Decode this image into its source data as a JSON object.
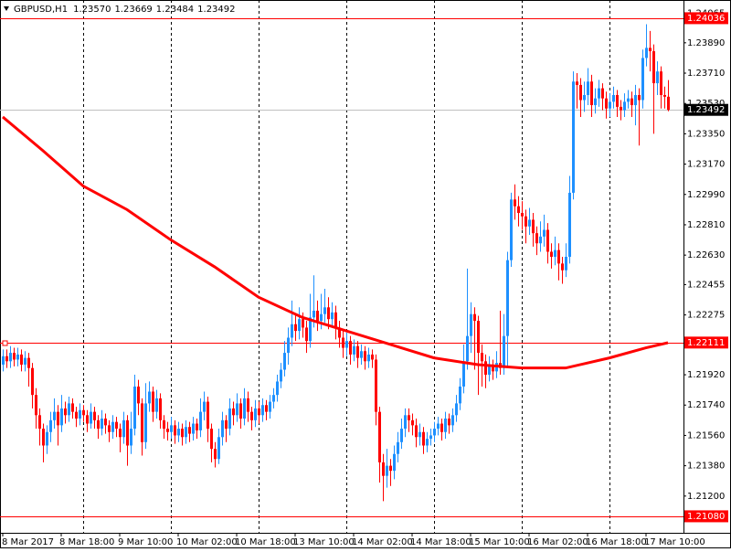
{
  "chart_data": {
    "type": "candlestick",
    "symbol": "GBPUSD,H1",
    "header_values": [
      "1.23570",
      "1.23669",
      "1.23484",
      "1.23492"
    ],
    "up_color": "#1e90ff",
    "down_color": "#ff0000",
    "ylim": [
      1.20982,
      1.24144
    ],
    "yticks": [
      1.24065,
      {
        "value": 1.2389,
        "label": "1.23890"
      },
      {
        "value": 1.2371,
        "label": "1.23710"
      },
      {
        "value": 1.2353,
        "label": "1.23530"
      },
      {
        "value": 1.2335,
        "label": "1.23350"
      },
      {
        "value": 1.2317,
        "label": "1.23170"
      },
      {
        "value": 1.2299,
        "label": "1.22990"
      },
      {
        "value": 1.2281,
        "label": "1.22810"
      },
      {
        "value": 1.2263,
        "label": "1.22630"
      },
      1.22455,
      1.22275,
      {
        "value": 1.2192,
        "label": "1.21920"
      },
      {
        "value": 1.2174,
        "label": "1.21740"
      },
      {
        "value": 1.2156,
        "label": "1.21560"
      },
      {
        "value": 1.2138,
        "label": "1.21380"
      },
      {
        "value": 1.212,
        "label": "1.21200"
      }
    ],
    "xticks": [
      {
        "value": 0,
        "label": "8 Mar 2017"
      },
      {
        "value": 16,
        "label": "8 Mar 18:00"
      },
      {
        "value": 32,
        "label": "9 Mar 10:00"
      },
      {
        "value": 48,
        "label": "10 Mar 02:00"
      },
      {
        "value": 64,
        "label": "10 Mar 18:00"
      },
      {
        "value": 80,
        "label": "13 Mar 10:00"
      },
      {
        "value": 96,
        "label": "14 Mar 02:00"
      },
      {
        "value": 112,
        "label": "14 Mar 18:00"
      },
      {
        "value": 128,
        "label": "15 Mar 10:00"
      },
      {
        "value": 144,
        "label": "16 Mar 02:00"
      },
      {
        "value": 160,
        "label": "16 Mar 18:00"
      },
      {
        "value": 176,
        "label": "17 Mar 10:00"
      }
    ],
    "day_separators": [
      22,
      46,
      70,
      94,
      118,
      142,
      166
    ],
    "levels": [
      {
        "value": 1.24036,
        "color": "#ff0000"
      },
      {
        "value": 1.22111,
        "color": "#ff0000"
      },
      {
        "value": 1.2108,
        "label": "1.21080",
        "color": "#ff0000"
      }
    ],
    "current_price": {
      "value": 1.23492,
      "color": "#c0c0c0"
    },
    "ma": {
      "color": "#ff0000",
      "x": [
        0,
        11,
        22,
        34,
        46,
        58,
        70,
        82,
        94,
        106,
        118,
        130,
        142,
        154,
        166,
        176,
        182
      ],
      "values": [
        1.2345,
        1.2325,
        1.2304,
        1.229,
        1.2272,
        1.2256,
        1.2238,
        1.2226,
        1.2218,
        1.221,
        1.2202,
        1.2198,
        1.2196,
        1.2196,
        1.2202,
        1.2208,
        1.2211
      ]
    },
    "ohlc": [
      [
        1.2198,
        1.2207,
        1.2194,
        1.2203
      ],
      [
        1.2203,
        1.2207,
        1.2196,
        1.22
      ],
      [
        1.22,
        1.2209,
        1.2196,
        1.2205
      ],
      [
        1.2205,
        1.2208,
        1.2197,
        1.2201
      ],
      [
        1.2201,
        1.2208,
        1.2197,
        1.2204
      ],
      [
        1.2204,
        1.2207,
        1.2194,
        1.2198
      ],
      [
        1.2198,
        1.2206,
        1.2194,
        1.2202
      ],
      [
        1.2202,
        1.2205,
        1.2185,
        1.2196
      ],
      [
        1.2196,
        1.2199,
        1.2172,
        1.218
      ],
      [
        1.218,
        1.2184,
        1.216,
        1.2168
      ],
      [
        1.2168,
        1.2172,
        1.215,
        1.216
      ],
      [
        1.216,
        1.2163,
        1.214,
        1.215
      ],
      [
        1.215,
        1.2162,
        1.2145,
        1.2158
      ],
      [
        1.2158,
        1.217,
        1.2152,
        1.2165
      ],
      [
        1.2165,
        1.2178,
        1.216,
        1.217
      ],
      [
        1.217,
        1.2174,
        1.215,
        1.2162
      ],
      [
        1.2162,
        1.218,
        1.2158,
        1.2172
      ],
      [
        1.2172,
        1.2176,
        1.2163,
        1.2168
      ],
      [
        1.2168,
        1.2179,
        1.2164,
        1.2175
      ],
      [
        1.2175,
        1.2178,
        1.2166,
        1.217
      ],
      [
        1.217,
        1.2173,
        1.2161,
        1.2166
      ],
      [
        1.2166,
        1.2175,
        1.2162,
        1.2171
      ],
      [
        1.2171,
        1.2174,
        1.2164,
        1.2168
      ],
      [
        1.2168,
        1.2171,
        1.2158,
        1.2163
      ],
      [
        1.2163,
        1.2175,
        1.216,
        1.217
      ],
      [
        1.217,
        1.2173,
        1.216,
        1.2165
      ],
      [
        1.2165,
        1.2168,
        1.2154,
        1.216
      ],
      [
        1.216,
        1.2171,
        1.2156,
        1.2166
      ],
      [
        1.2166,
        1.2169,
        1.2157,
        1.2162
      ],
      [
        1.2162,
        1.2165,
        1.2152,
        1.2158
      ],
      [
        1.2158,
        1.2168,
        1.2154,
        1.2164
      ],
      [
        1.2164,
        1.2167,
        1.2155,
        1.216
      ],
      [
        1.216,
        1.2163,
        1.2146,
        1.2155
      ],
      [
        1.2155,
        1.217,
        1.2151,
        1.2165
      ],
      [
        1.2165,
        1.2168,
        1.2138,
        1.215
      ],
      [
        1.215,
        1.217,
        1.2145,
        1.216
      ],
      [
        1.216,
        1.2192,
        1.2156,
        1.2185
      ],
      [
        1.2185,
        1.2189,
        1.2168,
        1.2175
      ],
      [
        1.2175,
        1.2178,
        1.2144,
        1.2152
      ],
      [
        1.2152,
        1.2187,
        1.2148,
        1.2175
      ],
      [
        1.2175,
        1.2188,
        1.217,
        1.2182
      ],
      [
        1.2182,
        1.2185,
        1.2164,
        1.217
      ],
      [
        1.217,
        1.2183,
        1.2166,
        1.2178
      ],
      [
        1.2178,
        1.2181,
        1.216,
        1.2165
      ],
      [
        1.2165,
        1.2168,
        1.2154,
        1.216
      ],
      [
        1.216,
        1.2164,
        1.2153,
        1.2158
      ],
      [
        1.2158,
        1.2167,
        1.2154,
        1.2162
      ],
      [
        1.2162,
        1.2165,
        1.2151,
        1.2156
      ],
      [
        1.2156,
        1.2164,
        1.2152,
        1.216
      ],
      [
        1.216,
        1.2163,
        1.215,
        1.2155
      ],
      [
        1.2155,
        1.2165,
        1.2151,
        1.2161
      ],
      [
        1.2161,
        1.2164,
        1.2152,
        1.2157
      ],
      [
        1.2157,
        1.2167,
        1.2153,
        1.2163
      ],
      [
        1.2163,
        1.2166,
        1.2154,
        1.2159
      ],
      [
        1.2159,
        1.2178,
        1.2155,
        1.217
      ],
      [
        1.217,
        1.2182,
        1.2165,
        1.2176
      ],
      [
        1.2176,
        1.2179,
        1.2152,
        1.216
      ],
      [
        1.216,
        1.2163,
        1.214,
        1.2148
      ],
      [
        1.2148,
        1.2152,
        1.2137,
        1.2142
      ],
      [
        1.2142,
        1.216,
        1.2139,
        1.2155
      ],
      [
        1.2155,
        1.217,
        1.215,
        1.2165
      ],
      [
        1.2165,
        1.2168,
        1.2152,
        1.216
      ],
      [
        1.216,
        1.2178,
        1.2156,
        1.2172
      ],
      [
        1.2172,
        1.2176,
        1.2162,
        1.2168
      ],
      [
        1.2168,
        1.2181,
        1.2164,
        1.2175
      ],
      [
        1.2175,
        1.2178,
        1.216,
        1.2166
      ],
      [
        1.2166,
        1.2184,
        1.2162,
        1.2178
      ],
      [
        1.2178,
        1.2182,
        1.2164,
        1.217
      ],
      [
        1.217,
        1.2173,
        1.2159,
        1.2165
      ],
      [
        1.2165,
        1.2177,
        1.2161,
        1.2172
      ],
      [
        1.2172,
        1.2176,
        1.2163,
        1.2168
      ],
      [
        1.2168,
        1.2178,
        1.2164,
        1.2174
      ],
      [
        1.2174,
        1.2177,
        1.2165,
        1.217
      ],
      [
        1.217,
        1.218,
        1.2166,
        1.2176
      ],
      [
        1.2176,
        1.2184,
        1.2172,
        1.218
      ],
      [
        1.218,
        1.2192,
        1.2176,
        1.2188
      ],
      [
        1.2188,
        1.2199,
        1.2184,
        1.2195
      ],
      [
        1.2195,
        1.2212,
        1.2191,
        1.2205
      ],
      [
        1.2205,
        1.222,
        1.2198,
        1.2214
      ],
      [
        1.2214,
        1.2236,
        1.2209,
        1.2222
      ],
      [
        1.2222,
        1.2228,
        1.2212,
        1.2218
      ],
      [
        1.2218,
        1.2232,
        1.2213,
        1.2225
      ],
      [
        1.2225,
        1.2229,
        1.2214,
        1.222
      ],
      [
        1.222,
        1.2224,
        1.2205,
        1.2212
      ],
      [
        1.2212,
        1.224,
        1.2208,
        1.2226
      ],
      [
        1.2226,
        1.2251,
        1.222,
        1.223
      ],
      [
        1.223,
        1.2236,
        1.2218,
        1.2224
      ],
      [
        1.2224,
        1.224,
        1.2219,
        1.2228
      ],
      [
        1.2228,
        1.2243,
        1.2223,
        1.2232
      ],
      [
        1.2232,
        1.2238,
        1.2219,
        1.2225
      ],
      [
        1.2225,
        1.2235,
        1.222,
        1.2229
      ],
      [
        1.2229,
        1.2233,
        1.2213,
        1.222
      ],
      [
        1.222,
        1.2224,
        1.2208,
        1.2214
      ],
      [
        1.2214,
        1.2218,
        1.2202,
        1.2208
      ],
      [
        1.2208,
        1.2217,
        1.2203,
        1.2212
      ],
      [
        1.2212,
        1.2215,
        1.2198,
        1.2204
      ],
      [
        1.2204,
        1.2213,
        1.22,
        1.2209
      ],
      [
        1.2209,
        1.2212,
        1.2196,
        1.2202
      ],
      [
        1.2202,
        1.221,
        1.2198,
        1.2206
      ],
      [
        1.2206,
        1.2209,
        1.2195,
        1.22
      ],
      [
        1.22,
        1.2208,
        1.2196,
        1.2204
      ],
      [
        1.2204,
        1.2207,
        1.2196,
        1.2201
      ],
      [
        1.2201,
        1.2204,
        1.2162,
        1.217
      ],
      [
        1.217,
        1.2173,
        1.2128,
        1.214
      ],
      [
        1.214,
        1.2145,
        1.2117,
        1.2132
      ],
      [
        1.2132,
        1.2148,
        1.2125,
        1.2138
      ],
      [
        1.2138,
        1.2142,
        1.2126,
        1.2135
      ],
      [
        1.2135,
        1.215,
        1.213,
        1.2145
      ],
      [
        1.2145,
        1.2158,
        1.214,
        1.2152
      ],
      [
        1.2152,
        1.2166,
        1.2148,
        1.216
      ],
      [
        1.216,
        1.2172,
        1.2155,
        1.2168
      ],
      [
        1.2168,
        1.2172,
        1.2158,
        1.2165
      ],
      [
        1.2165,
        1.2169,
        1.2156,
        1.2162
      ],
      [
        1.2162,
        1.2166,
        1.2149,
        1.2155
      ],
      [
        1.2155,
        1.2163,
        1.215,
        1.2158
      ],
      [
        1.2158,
        1.2161,
        1.2145,
        1.215
      ],
      [
        1.215,
        1.2158,
        1.2146,
        1.2154
      ],
      [
        1.2154,
        1.216,
        1.215,
        1.2156
      ],
      [
        1.2156,
        1.2164,
        1.2152,
        1.216
      ],
      [
        1.216,
        1.2167,
        1.2156,
        1.2163
      ],
      [
        1.2163,
        1.2166,
        1.2153,
        1.2158
      ],
      [
        1.2158,
        1.217,
        1.2154,
        1.2166
      ],
      [
        1.2166,
        1.2169,
        1.2157,
        1.2162
      ],
      [
        1.2162,
        1.2172,
        1.2158,
        1.2168
      ],
      [
        1.2168,
        1.218,
        1.2164,
        1.2175
      ],
      [
        1.2175,
        1.219,
        1.2171,
        1.2185
      ],
      [
        1.2185,
        1.221,
        1.2181,
        1.22
      ],
      [
        1.22,
        1.2255,
        1.2195,
        1.2215
      ],
      [
        1.2215,
        1.2235,
        1.2205,
        1.2228
      ],
      [
        1.2228,
        1.2232,
        1.2195,
        1.2224
      ],
      [
        1.2224,
        1.2227,
        1.218,
        1.2205
      ],
      [
        1.2205,
        1.221,
        1.2185,
        1.22
      ],
      [
        1.22,
        1.2204,
        1.2184,
        1.2192
      ],
      [
        1.2192,
        1.2203,
        1.2188,
        1.2197
      ],
      [
        1.2197,
        1.2201,
        1.2189,
        1.2194
      ],
      [
        1.2194,
        1.2206,
        1.219,
        1.2199
      ],
      [
        1.2199,
        1.223,
        1.2192,
        1.2196
      ],
      [
        1.2196,
        1.2228,
        1.2192,
        1.2215
      ],
      [
        1.2215,
        1.2265,
        1.2196,
        1.226
      ],
      [
        1.226,
        1.23,
        1.2256,
        1.2296
      ],
      [
        1.2296,
        1.2305,
        1.2284,
        1.2292
      ],
      [
        1.2292,
        1.2298,
        1.228,
        1.2288
      ],
      [
        1.2288,
        1.2295,
        1.2278,
        1.2286
      ],
      [
        1.2286,
        1.229,
        1.227,
        1.228
      ],
      [
        1.228,
        1.2291,
        1.2275,
        1.2284
      ],
      [
        1.2284,
        1.2288,
        1.2268,
        1.2276
      ],
      [
        1.2276,
        1.228,
        1.2263,
        1.227
      ],
      [
        1.227,
        1.2283,
        1.2265,
        1.2274
      ],
      [
        1.2274,
        1.2287,
        1.2268,
        1.2278
      ],
      [
        1.2278,
        1.2282,
        1.2258,
        1.2265
      ],
      [
        1.2265,
        1.227,
        1.2255,
        1.2262
      ],
      [
        1.2262,
        1.2274,
        1.2257,
        1.2266
      ],
      [
        1.2266,
        1.227,
        1.2248,
        1.2258
      ],
      [
        1.2258,
        1.2262,
        1.2246,
        1.2254
      ],
      [
        1.2254,
        1.227,
        1.225,
        1.2262
      ],
      [
        1.2262,
        1.231,
        1.2258,
        1.23
      ],
      [
        1.23,
        1.2372,
        1.2296,
        1.2366
      ],
      [
        1.2366,
        1.2371,
        1.235,
        1.2364
      ],
      [
        1.2364,
        1.2368,
        1.2345,
        1.2355
      ],
      [
        1.2355,
        1.2366,
        1.2348,
        1.2358
      ],
      [
        1.2358,
        1.2374,
        1.2352,
        1.2366
      ],
      [
        1.2366,
        1.237,
        1.2345,
        1.2352
      ],
      [
        1.2352,
        1.2362,
        1.2347,
        1.2356
      ],
      [
        1.2356,
        1.2367,
        1.2351,
        1.2362
      ],
      [
        1.2362,
        1.2365,
        1.2349,
        1.2356
      ],
      [
        1.2356,
        1.236,
        1.2344,
        1.235
      ],
      [
        1.235,
        1.2359,
        1.2345,
        1.2354
      ],
      [
        1.2354,
        1.2363,
        1.235,
        1.2358
      ],
      [
        1.2358,
        1.2361,
        1.2345,
        1.2351
      ],
      [
        1.2351,
        1.2355,
        1.2343,
        1.2349
      ],
      [
        1.2349,
        1.2359,
        1.2345,
        1.2354
      ],
      [
        1.2354,
        1.2361,
        1.235,
        1.2356
      ],
      [
        1.2356,
        1.236,
        1.2345,
        1.2352
      ],
      [
        1.2352,
        1.2364,
        1.234,
        1.2358
      ],
      [
        1.2358,
        1.2362,
        1.2328,
        1.2355
      ],
      [
        1.2355,
        1.2385,
        1.235,
        1.238
      ],
      [
        1.238,
        1.24,
        1.2375,
        1.2386
      ],
      [
        1.2386,
        1.2396,
        1.2372,
        1.2384
      ],
      [
        1.2384,
        1.2388,
        1.2335,
        1.2365
      ],
      [
        1.2365,
        1.2378,
        1.2358,
        1.2372
      ],
      [
        1.2372,
        1.2375,
        1.235,
        1.2358
      ],
      [
        1.2358,
        1.2363,
        1.235,
        1.2357
      ],
      [
        1.2357,
        1.23669,
        1.23484,
        1.23492
      ]
    ]
  }
}
